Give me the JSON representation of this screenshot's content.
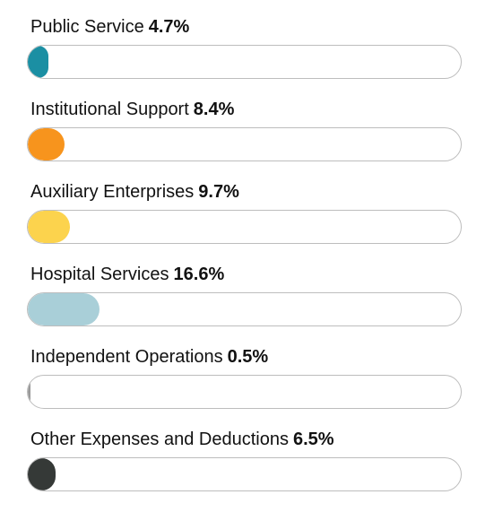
{
  "chart_data": {
    "type": "bar",
    "orientation": "horizontal",
    "categories": [
      "Public Service",
      "Institutional Support",
      "Auxiliary Enterprises",
      "Hospital Services",
      "Independent Operations",
      "Other Expenses and Deductions"
    ],
    "values": [
      4.7,
      8.4,
      9.7,
      16.6,
      0.5,
      6.5
    ],
    "value_labels": [
      "4.7%",
      "8.4%",
      "9.7%",
      "16.6%",
      "0.5%",
      "6.5%"
    ],
    "colors": [
      "#1b8fa3",
      "#f7941d",
      "#fcd34d",
      "#a9cfd8",
      "#9a9a9a",
      "#353937"
    ],
    "xlim": [
      0,
      100
    ],
    "grid": false
  }
}
